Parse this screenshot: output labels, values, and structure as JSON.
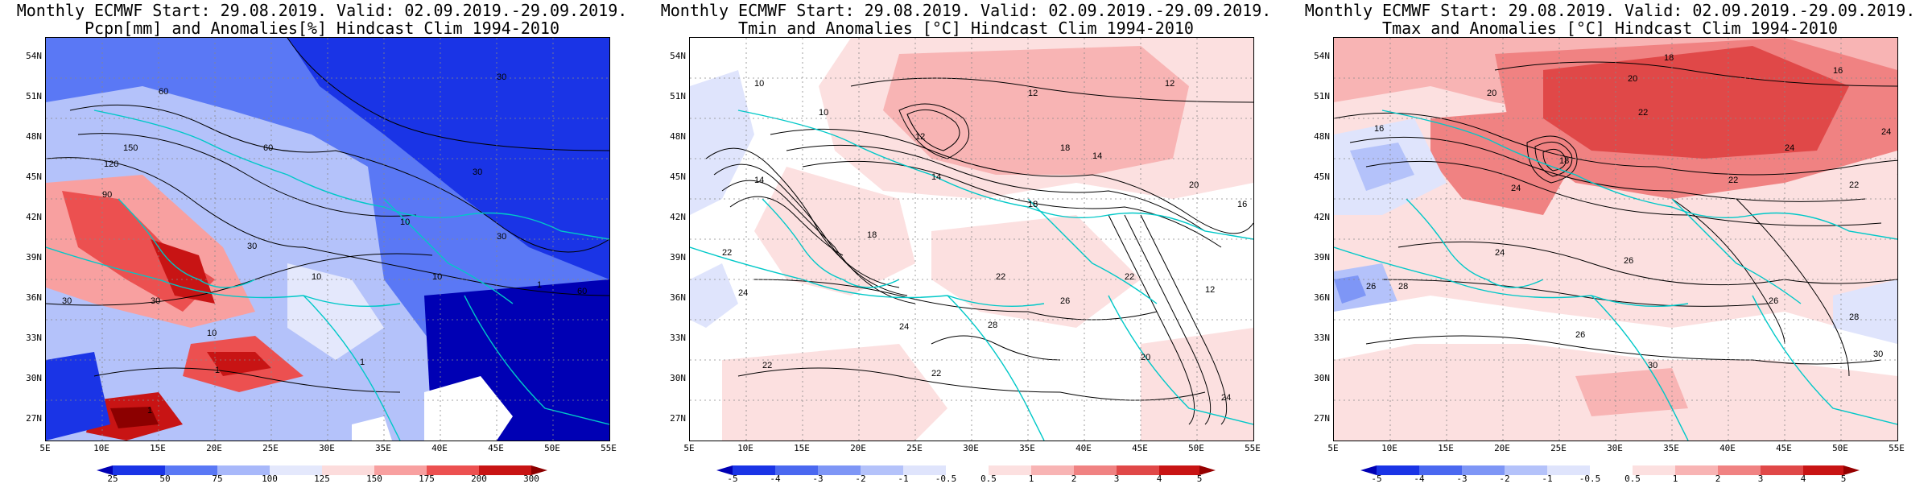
{
  "panels": [
    {
      "id": "pcpn",
      "title_line1": "Monthly ECMWF Start: 29.08.2019. Valid: 02.09.2019.-29.09.2019.",
      "title_line2": "Pcpn[mm] and Anomalies[%] Hindcast Clim 1994-2010",
      "lat_labels": [
        "54N",
        "51N",
        "48N",
        "45N",
        "42N",
        "39N",
        "36N",
        "33N",
        "30N",
        "27N"
      ],
      "lon_labels": [
        "5E",
        "10E",
        "15E",
        "20E",
        "25E",
        "30E",
        "35E",
        "40E",
        "45E",
        "50E",
        "55E"
      ],
      "colorbar_labels": [
        "25",
        "50",
        "75",
        "100",
        "125",
        "150",
        "175",
        "200",
        "300"
      ],
      "colorbar_colors": [
        "#0000b4",
        "#1a34e6",
        "#5a78f5",
        "#a8b8fa",
        "#e4e8fc",
        "#fcdcdc",
        "#f8a0a0",
        "#ec5050",
        "#c81414",
        "#8c0000"
      ],
      "contour_labels": [
        "60",
        "30",
        "120",
        "150",
        "90",
        "60",
        "30",
        "10",
        "30",
        "30",
        "30",
        "10",
        "30",
        "1",
        "10",
        "60",
        "1",
        "1",
        "1",
        "10"
      ]
    },
    {
      "id": "tmin",
      "title_line1": "Monthly ECMWF Start: 29.08.2019. Valid: 02.09.2019.-29.09.2019.",
      "title_line2": "Tmin and Anomalies [°C] Hindcast Clim 1994-2010",
      "lat_labels": [
        "54N",
        "51N",
        "48N",
        "45N",
        "42N",
        "39N",
        "36N",
        "33N",
        "30N",
        "27N"
      ],
      "lon_labels": [
        "5E",
        "10E",
        "15E",
        "20E",
        "25E",
        "30E",
        "35E",
        "40E",
        "45E",
        "50E",
        "55E"
      ],
      "colorbar_labels": [
        "-5",
        "-4",
        "-3",
        "-2",
        "-1",
        "-0.5",
        "0.5",
        "1",
        "2",
        "3",
        "4",
        "5"
      ],
      "colorbar_colors": [
        "#0000b4",
        "#1a34e6",
        "#4a68f0",
        "#7e96f6",
        "#b4c2fa",
        "#dfe4fc",
        "#ffffff",
        "#fce0e0",
        "#f8b4b4",
        "#f08282",
        "#e04848",
        "#c81414",
        "#960000"
      ],
      "contour_labels": [
        "10",
        "12",
        "12",
        "14",
        "12",
        "10",
        "14",
        "18",
        "14",
        "18",
        "20",
        "16",
        "22",
        "24",
        "22",
        "18",
        "24",
        "22",
        "28",
        "26",
        "22",
        "20",
        "22",
        "12",
        "24"
      ]
    },
    {
      "id": "tmax",
      "title_line1": "Monthly ECMWF Start: 29.08.2019. Valid: 02.09.2019.-29.09.2019.",
      "title_line2": "Tmax and Anomalies [°C] Hindcast Clim 1994-2010",
      "lat_labels": [
        "54N",
        "51N",
        "48N",
        "45N",
        "42N",
        "39N",
        "36N",
        "33N",
        "30N",
        "27N"
      ],
      "lon_labels": [
        "5E",
        "10E",
        "15E",
        "20E",
        "25E",
        "30E",
        "35E",
        "40E",
        "45E",
        "50E",
        "55E"
      ],
      "colorbar_labels": [
        "-5",
        "-4",
        "-3",
        "-2",
        "-1",
        "-0.5",
        "0.5",
        "1",
        "2",
        "3",
        "4",
        "5"
      ],
      "colorbar_colors": [
        "#0000b4",
        "#1a34e6",
        "#4a68f0",
        "#7e96f6",
        "#b4c2fa",
        "#dfe4fc",
        "#ffffff",
        "#fce0e0",
        "#f8b4b4",
        "#f08282",
        "#e04848",
        "#c81414",
        "#960000"
      ],
      "contour_labels": [
        "18",
        "20",
        "16",
        "20",
        "22",
        "18",
        "24",
        "22",
        "24",
        "22",
        "26",
        "24",
        "26",
        "28",
        "26",
        "30",
        "28",
        "26",
        "30",
        "24",
        "16"
      ]
    }
  ]
}
